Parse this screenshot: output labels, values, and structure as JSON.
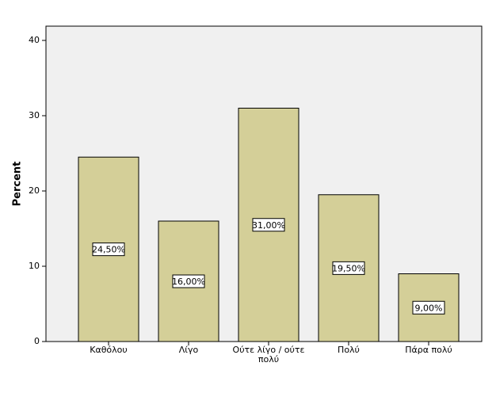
{
  "chart_data": {
    "type": "bar",
    "y_label": "Percent",
    "categories": [
      "Καθόλου",
      "Λίγο",
      "Ούτε λίγο / ούτε πολύ",
      "Πολύ",
      "Πάρα πολύ"
    ],
    "values": [
      24.5,
      16,
      31,
      19.5,
      9
    ],
    "value_labels": [
      "24,50%",
      "16,00%",
      "31,00%",
      "19,50%",
      "9,00%"
    ],
    "color": "#d4cf98",
    "ylim": [
      0,
      40
    ],
    "yticks": [
      0,
      10,
      20,
      30,
      40
    ]
  }
}
